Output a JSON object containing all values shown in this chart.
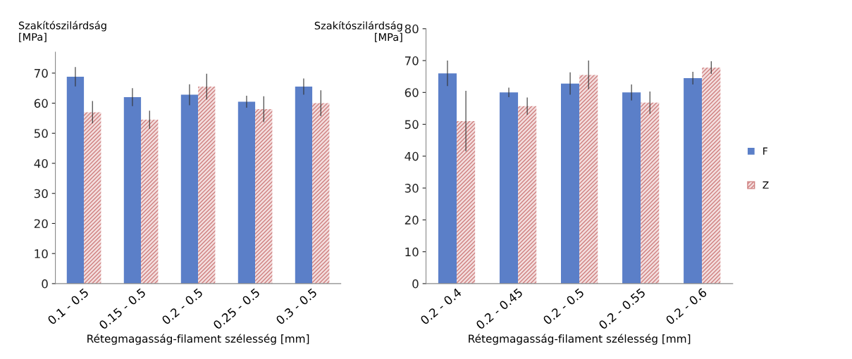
{
  "chart_data": [
    {
      "type": "bar",
      "ylabel": "Szakítószilárdság\n[MPa]",
      "xlabel": "Rétegmagasság-filament szélesség [mm]",
      "categories": [
        "0.1 - 0.5",
        "0.15 - 0.5",
        "0.2 - 0.5",
        "0.25 - 0.5",
        "0.3 - 0.5"
      ],
      "series": [
        {
          "color": "#5b7fc8",
          "values": [
            68.8,
            62,
            62.8,
            60.5,
            65.5
          ],
          "errors": [
            3.2,
            3,
            3.5,
            2,
            2.7
          ]
        },
        {
          "color": "#cf8080",
          "values": [
            57,
            54.5,
            65.5,
            58,
            60
          ],
          "errors": [
            3.7,
            3,
            4.3,
            4.3,
            4.3
          ]
        }
      ],
      "ylim": [
        0,
        77
      ],
      "yticks": [
        0,
        10,
        20,
        30,
        40,
        50,
        60,
        70
      ],
      "grid": false,
      "legend": false
    },
    {
      "type": "bar",
      "ylabel": "Szakítószilárdság\n[MPa]",
      "xlabel": "Rétegmagasság-filament szélesség [mm]",
      "categories": [
        "0.2 - 0.4",
        "0.2 - 0.45",
        "0.2 - 0.5",
        "0.2 - 0.55",
        "0.2 - 0.6"
      ],
      "series": [
        {
          "name": "F",
          "color": "#5b7fc8",
          "values": [
            66,
            60,
            62.8,
            60,
            64.5
          ],
          "errors": [
            4,
            1.5,
            3.5,
            2.5,
            2
          ]
        },
        {
          "name": "Z",
          "color": "#cf8080",
          "values": [
            51,
            55.7,
            65.5,
            56.8,
            67.8
          ],
          "errors": [
            9.5,
            2.7,
            4.5,
            3.5,
            2
          ]
        }
      ],
      "ylim": [
        0,
        80
      ],
      "yticks": [
        0,
        10,
        20,
        30,
        40,
        50,
        60,
        70,
        80
      ],
      "grid": false,
      "legend": "right"
    }
  ]
}
